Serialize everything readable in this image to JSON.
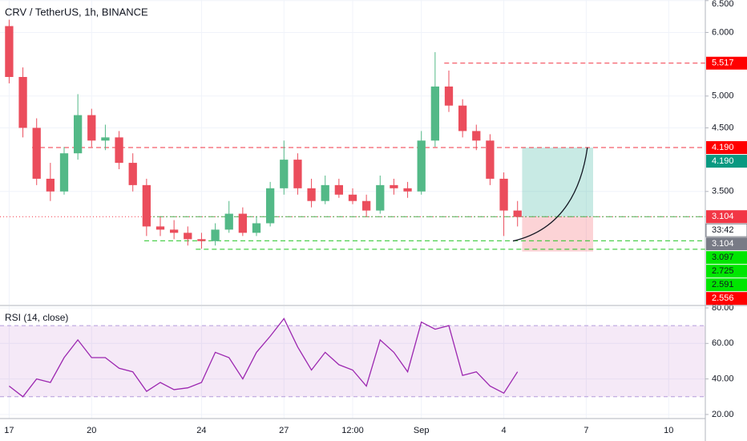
{
  "chart_data": [
    {
      "type": "candlestick",
      "title": "CRV / TetherUS, 1h, BINANCE",
      "x": [
        0,
        12,
        24,
        36,
        48,
        60,
        72,
        84,
        96,
        108,
        120,
        132,
        144,
        156,
        168,
        180,
        192,
        204,
        216,
        228,
        240,
        252,
        264,
        276,
        288,
        300,
        312,
        324,
        336,
        348,
        360,
        372,
        384,
        396,
        408,
        420,
        432,
        444
      ],
      "open": [
        6.1,
        5.3,
        4.5,
        3.7,
        3.5,
        4.1,
        4.7,
        4.3,
        4.35,
        3.95,
        3.6,
        2.95,
        2.9,
        2.85,
        2.75,
        2.72,
        2.9,
        3.15,
        2.85,
        3.0,
        3.55,
        4.0,
        3.55,
        3.35,
        3.6,
        3.45,
        3.35,
        3.2,
        3.6,
        3.55,
        3.5,
        4.3,
        5.15,
        4.85,
        4.45,
        4.3,
        3.7,
        3.2
      ],
      "high": [
        6.2,
        5.45,
        4.65,
        3.95,
        4.2,
        5.03,
        4.8,
        4.55,
        4.45,
        4.1,
        3.7,
        3.1,
        3.05,
        2.95,
        2.85,
        3.0,
        3.35,
        3.25,
        3.1,
        3.65,
        4.3,
        4.1,
        3.7,
        3.75,
        3.7,
        3.55,
        3.45,
        3.75,
        3.7,
        3.65,
        4.45,
        5.69,
        5.4,
        4.95,
        4.55,
        4.4,
        3.8,
        3.35
      ],
      "low": [
        5.2,
        4.35,
        3.6,
        3.35,
        3.45,
        4.0,
        4.2,
        4.15,
        3.85,
        3.5,
        2.8,
        2.8,
        2.75,
        2.65,
        2.6,
        2.65,
        2.85,
        2.8,
        2.8,
        2.95,
        3.45,
        3.45,
        3.25,
        3.3,
        3.4,
        3.3,
        3.1,
        3.15,
        3.45,
        3.4,
        3.45,
        4.2,
        4.75,
        4.35,
        4.15,
        3.6,
        2.8,
        2.95
      ],
      "close": [
        5.3,
        4.5,
        3.7,
        3.5,
        4.1,
        4.7,
        4.3,
        4.35,
        3.95,
        3.6,
        2.95,
        2.9,
        2.85,
        2.75,
        2.72,
        2.9,
        3.15,
        2.85,
        3.0,
        3.55,
        4.0,
        3.55,
        3.35,
        3.6,
        3.45,
        3.35,
        3.2,
        3.6,
        3.55,
        3.5,
        4.3,
        5.15,
        4.85,
        4.45,
        4.3,
        3.7,
        3.2,
        3.1
      ],
      "up_color": "#53b987",
      "down_color": "#eb4d5c",
      "xlim": [
        -8,
        608
      ],
      "ylim": [
        1.72,
        6.51
      ],
      "yticks": [
        {
          "value": 6.5,
          "label": "6.500"
        },
        {
          "value": 6,
          "label": "6.000"
        },
        {
          "value": 5,
          "label": "5.000"
        },
        {
          "value": 4.5,
          "label": "4.500"
        },
        {
          "value": 3.5,
          "label": "3.500"
        }
      ],
      "grid": true,
      "levels": [
        {
          "value": 5.517,
          "color": "#f23645",
          "style": "dashed",
          "start": 380
        },
        {
          "value": 4.19,
          "color": "#f23645",
          "style": "dashed",
          "start": 20
        },
        {
          "value": 3.104,
          "color": "#f23645",
          "style": "dotted",
          "start": -8
        },
        {
          "value": 3.104,
          "color": "#4caf50",
          "style": "dashdot",
          "start": 118
        },
        {
          "value": 2.725,
          "color": "#1ec31e",
          "style": "dashed",
          "start": 118
        },
        {
          "value": 2.591,
          "color": "#1ec31e",
          "style": "dashed",
          "start": 163
        }
      ],
      "position": {
        "entry": 3.104,
        "target": 4.19,
        "stop": 2.556,
        "start": 448,
        "end": 510,
        "profit_color": "rgba(34,171,148,0.25)",
        "loss_color": "rgba(242,54,69,0.22)"
      },
      "price_labels": [
        {
          "value": 5.517,
          "label": "5.517",
          "color": "#ff0000"
        },
        {
          "value": 4.19,
          "label": "4.190",
          "color": "#ff0000"
        },
        {
          "value": 4.19,
          "label": "4.190",
          "color": "#089981"
        },
        {
          "value": 3.104,
          "label": "3.104",
          "color": "#f23645"
        },
        {
          "label": "33:42",
          "color": "#ffffff"
        },
        {
          "value": 3.104,
          "label": "3.104",
          "color": "#787b86"
        },
        {
          "value": 3.097,
          "label": "3.097",
          "color": "#00e600"
        },
        {
          "value": 2.725,
          "label": "2.725",
          "color": "#00e600"
        },
        {
          "value": 2.591,
          "label": "2.591",
          "color": "#00e600"
        },
        {
          "value": 2.556,
          "label": "2.556",
          "color": "#ff0000"
        }
      ]
    },
    {
      "type": "line",
      "title": "RSI (14, close)",
      "x": [
        0,
        12,
        24,
        36,
        48,
        60,
        72,
        84,
        96,
        108,
        120,
        132,
        144,
        156,
        168,
        180,
        192,
        204,
        216,
        228,
        240,
        252,
        264,
        276,
        288,
        300,
        312,
        324,
        336,
        348,
        360,
        372,
        384,
        396,
        408,
        420,
        432,
        444
      ],
      "values": [
        36,
        30,
        40,
        38,
        52,
        62,
        52,
        52,
        46,
        44,
        33,
        38,
        34,
        35,
        38,
        55,
        52,
        40,
        55,
        64,
        74,
        58,
        45,
        55,
        48,
        45,
        36,
        62,
        55,
        44,
        72,
        68,
        70,
        42,
        44,
        36,
        32,
        44
      ],
      "color": "#9c27b0",
      "band": [
        30,
        70
      ],
      "band_color": "rgba(156,39,176,0.1)",
      "xlim": [
        -8,
        608
      ],
      "ylim": [
        17.7,
        80.9
      ],
      "yticks": [
        {
          "value": 80,
          "label": "80.00"
        },
        {
          "value": 60,
          "label": "60.00"
        },
        {
          "value": 40,
          "label": "40.00"
        },
        {
          "value": 20,
          "label": "20.00"
        }
      ],
      "xticks": [
        {
          "value": 0,
          "label": "17"
        },
        {
          "value": 72,
          "label": "20"
        },
        {
          "value": 168,
          "label": "24"
        },
        {
          "value": 240,
          "label": "27"
        },
        {
          "value": 300,
          "label": "12:00"
        },
        {
          "value": 360,
          "label": "Sep"
        },
        {
          "value": 432,
          "label": "4"
        },
        {
          "value": 504,
          "label": "7"
        },
        {
          "value": 576,
          "label": "10"
        }
      ],
      "grid": true
    }
  ]
}
